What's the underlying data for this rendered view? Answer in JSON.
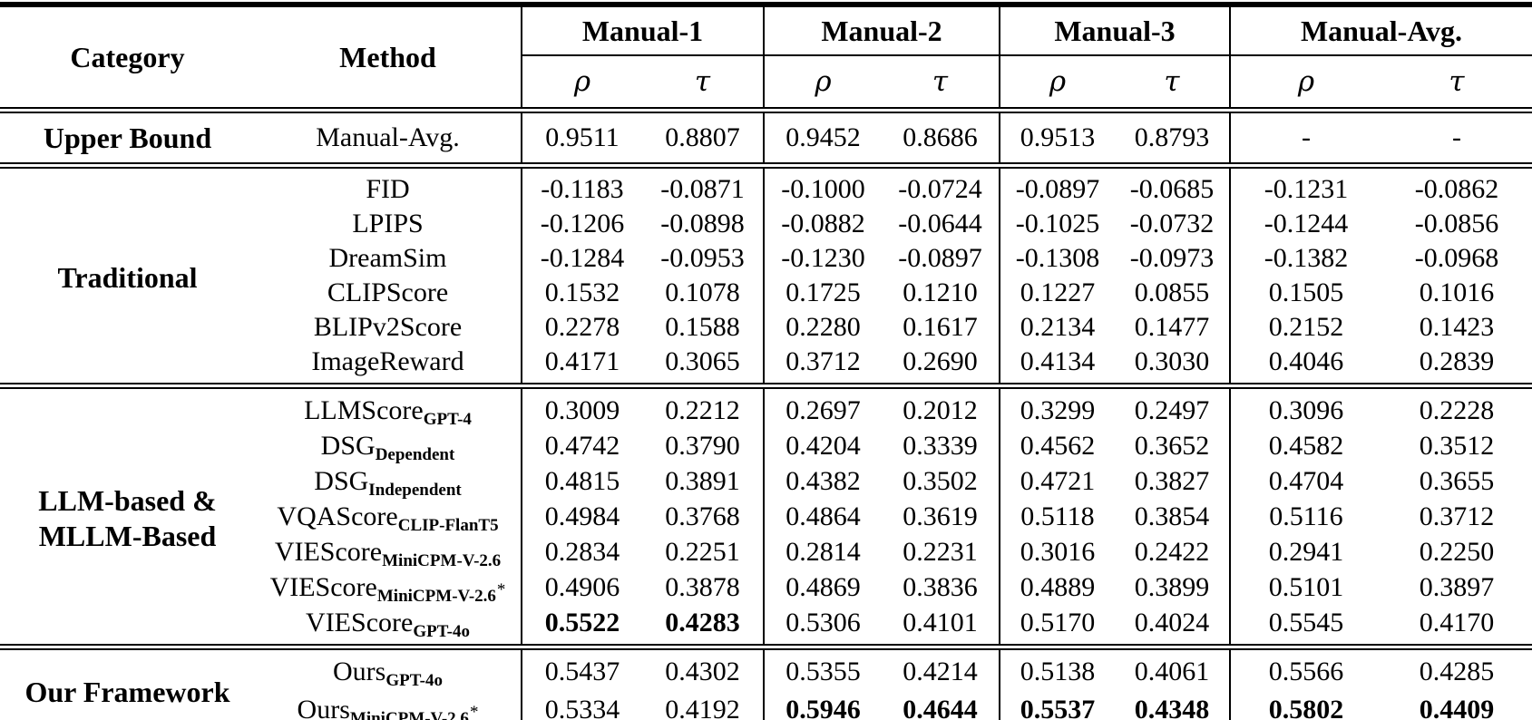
{
  "table": {
    "headers": {
      "category": "Category",
      "method": "Method",
      "groups": [
        "Manual-1",
        "Manual-2",
        "Manual-3",
        "Manual-Avg."
      ],
      "rho": "ρ",
      "tau": "τ"
    },
    "sections": [
      {
        "id": "upper-bound",
        "category_lines": [
          "Upper Bound"
        ],
        "rows": [
          {
            "method": {
              "base": "Manual-Avg."
            },
            "values": [
              "0.9511",
              "0.8807",
              "0.9452",
              "0.8686",
              "0.9513",
              "0.8793",
              "-",
              "-"
            ],
            "bold": []
          }
        ]
      },
      {
        "id": "traditional",
        "category_lines": [
          "Traditional"
        ],
        "rows": [
          {
            "method": {
              "base": "FID"
            },
            "values": [
              "-0.1183",
              "-0.0871",
              "-0.1000",
              "-0.0724",
              "-0.0897",
              "-0.0685",
              "-0.1231",
              "-0.0862"
            ],
            "bold": []
          },
          {
            "method": {
              "base": "LPIPS"
            },
            "values": [
              "-0.1206",
              "-0.0898",
              "-0.0882",
              "-0.0644",
              "-0.1025",
              "-0.0732",
              "-0.1244",
              "-0.0856"
            ],
            "bold": []
          },
          {
            "method": {
              "base": "DreamSim"
            },
            "values": [
              "-0.1284",
              "-0.0953",
              "-0.1230",
              "-0.0897",
              "-0.1308",
              "-0.0973",
              "-0.1382",
              "-0.0968"
            ],
            "bold": []
          },
          {
            "method": {
              "base": "CLIPScore"
            },
            "values": [
              "0.1532",
              "0.1078",
              "0.1725",
              "0.1210",
              "0.1227",
              "0.0855",
              "0.1505",
              "0.1016"
            ],
            "bold": []
          },
          {
            "method": {
              "base": "BLIPv2Score"
            },
            "values": [
              "0.2278",
              "0.1588",
              "0.2280",
              "0.1617",
              "0.2134",
              "0.1477",
              "0.2152",
              "0.1423"
            ],
            "bold": []
          },
          {
            "method": {
              "base": "ImageReward"
            },
            "values": [
              "0.4171",
              "0.3065",
              "0.3712",
              "0.2690",
              "0.4134",
              "0.3030",
              "0.4046",
              "0.2839"
            ],
            "bold": []
          }
        ]
      },
      {
        "id": "llm-mllm-based",
        "category_lines": [
          "LLM-based &",
          "MLLM-Based"
        ],
        "rows": [
          {
            "method": {
              "base": "LLMScore",
              "sub": "GPT-4"
            },
            "values": [
              "0.3009",
              "0.2212",
              "0.2697",
              "0.2012",
              "0.3299",
              "0.2497",
              "0.3096",
              "0.2228"
            ],
            "bold": []
          },
          {
            "method": {
              "base": "DSG",
              "sub": "Dependent"
            },
            "values": [
              "0.4742",
              "0.3790",
              "0.4204",
              "0.3339",
              "0.4562",
              "0.3652",
              "0.4582",
              "0.3512"
            ],
            "bold": []
          },
          {
            "method": {
              "base": "DSG",
              "sub": "Independent"
            },
            "values": [
              "0.4815",
              "0.3891",
              "0.4382",
              "0.3502",
              "0.4721",
              "0.3827",
              "0.4704",
              "0.3655"
            ],
            "bold": []
          },
          {
            "method": {
              "base": "VQAScore",
              "sub": "CLIP-FlanT5"
            },
            "values": [
              "0.4984",
              "0.3768",
              "0.4864",
              "0.3619",
              "0.5118",
              "0.3854",
              "0.5116",
              "0.3712"
            ],
            "bold": []
          },
          {
            "method": {
              "base": "VIEScore",
              "sub": "MiniCPM-V-2.6"
            },
            "values": [
              "0.2834",
              "0.2251",
              "0.2814",
              "0.2231",
              "0.3016",
              "0.2422",
              "0.2941",
              "0.2250"
            ],
            "bold": []
          },
          {
            "method": {
              "base": "VIEScore",
              "sub": "MiniCPM-V-2.6",
              "star": "*"
            },
            "values": [
              "0.4906",
              "0.3878",
              "0.4869",
              "0.3836",
              "0.4889",
              "0.3899",
              "0.5101",
              "0.3897"
            ],
            "bold": []
          },
          {
            "method": {
              "base": "VIEScore",
              "sub": "GPT-4o"
            },
            "values": [
              "0.5522",
              "0.4283",
              "0.5306",
              "0.4101",
              "0.5170",
              "0.4024",
              "0.5545",
              "0.4170"
            ],
            "bold": [
              0,
              1
            ]
          }
        ]
      },
      {
        "id": "our-framework",
        "category_lines": [
          "Our Framework"
        ],
        "rows": [
          {
            "method": {
              "base": "Ours",
              "sub": "GPT-4o"
            },
            "values": [
              "0.5437",
              "0.4302",
              "0.5355",
              "0.4214",
              "0.5138",
              "0.4061",
              "0.5566",
              "0.4285"
            ],
            "bold": []
          },
          {
            "method": {
              "base": "Ours",
              "sub": "MiniCPM-V-2.6",
              "star": "*"
            },
            "values": [
              "0.5334",
              "0.4192",
              "0.5946",
              "0.4644",
              "0.5537",
              "0.4348",
              "0.5802",
              "0.4409"
            ],
            "bold": [
              2,
              3,
              4,
              5,
              6,
              7
            ]
          }
        ]
      }
    ]
  }
}
